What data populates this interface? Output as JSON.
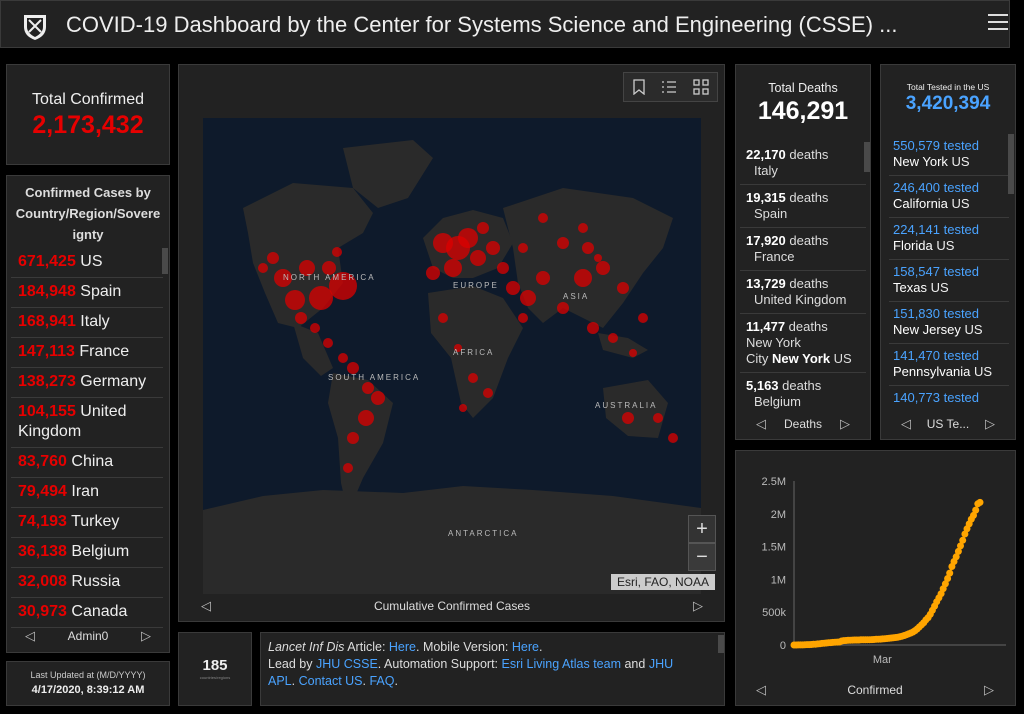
{
  "header": {
    "title": "COVID-19 Dashboard by the Center for Systems Science and Engineering (CSSE) ..."
  },
  "total_confirmed": {
    "label": "Total Confirmed",
    "value": "2,173,432"
  },
  "confirmed_list": {
    "title": "Confirmed Cases by Country/Region/Sovereignty",
    "title_lines": [
      "Confirmed Cases by",
      "Country/Region/Sovere",
      "ignty"
    ],
    "items": [
      {
        "value": "671,425",
        "name": "US"
      },
      {
        "value": "184,948",
        "name": "Spain"
      },
      {
        "value": "168,941",
        "name": "Italy"
      },
      {
        "value": "147,113",
        "name": "France"
      },
      {
        "value": "138,273",
        "name": "Germany"
      },
      {
        "value": "104,155",
        "name": "United Kingdom"
      },
      {
        "value": "83,760",
        "name": "China"
      },
      {
        "value": "79,494",
        "name": "Iran"
      },
      {
        "value": "74,193",
        "name": "Turkey"
      },
      {
        "value": "36,138",
        "name": "Belgium"
      },
      {
        "value": "32,008",
        "name": "Russia"
      },
      {
        "value": "30,973",
        "name": "Canada"
      }
    ],
    "nav_label": "Admin0"
  },
  "last_updated": {
    "label": "Last Updated at (M/D/YYYY)",
    "value": "4/17/2020, 8:39:12 AM"
  },
  "map": {
    "continent_labels": [
      "NORTH AMERICA",
      "SOUTH AMERICA",
      "EUROPE",
      "AFRICA",
      "ASIA",
      "AUSTRALIA",
      "ANTARCTICA"
    ],
    "attribution": "Esri, FAO, NOAA",
    "zoom_in": "+",
    "zoom_out": "−",
    "nav_label": "Cumulative Confirmed Cases"
  },
  "country_count": {
    "value": "185",
    "label": "countries/regions"
  },
  "info": {
    "l1_italic": "Lancet Inf Dis",
    "l1_a": " Article: ",
    "l1_link1": "Here",
    "l1_b": ". Mobile Version: ",
    "l1_link2": "Here",
    "l1_c": ".",
    "l2_a": "Lead by ",
    "l2_link1": "JHU CSSE",
    "l2_b": ". Automation Support: ",
    "l2_link2": "Esri Living Atlas team",
    "l2_c": " and ",
    "l2_link3": "JHU",
    "l3_link1": "APL",
    "l3_a": ". ",
    "l3_link2": "Contact US",
    "l3_b": ". ",
    "l3_link3": "FAQ",
    "l3_c": "."
  },
  "deaths": {
    "label": "Total Deaths",
    "value": "146,291",
    "items": [
      {
        "value": "22,170",
        "unit": "deaths",
        "line2": "Italy"
      },
      {
        "value": "19,315",
        "unit": "deaths",
        "line2": "Spain"
      },
      {
        "value": "17,920",
        "unit": "deaths",
        "line2": "France"
      },
      {
        "value": "13,729",
        "unit": "deaths",
        "line2": "United Kingdom"
      },
      {
        "value": "11,477",
        "unit": "deaths",
        "line2": "New York",
        "line3a": "City ",
        "line3b": "New York",
        "line3c": " US"
      },
      {
        "value": "5,163",
        "unit": "deaths",
        "line2": "Belgium"
      }
    ],
    "nav_label": "Deaths"
  },
  "tested": {
    "label": "Total Tested in the US",
    "value": "3,420,394",
    "items": [
      {
        "value": "550,579 tested",
        "state": "New York",
        "country": " US"
      },
      {
        "value": "246,400 tested",
        "state": "California",
        "country": " US"
      },
      {
        "value": "224,141 tested",
        "state": "Florida",
        "country": " US"
      },
      {
        "value": "158,547 tested",
        "state": "Texas",
        "country": " US"
      },
      {
        "value": "151,830 tested",
        "state": "New Jersey",
        "country": " US"
      },
      {
        "value": "141,470 tested",
        "state": "Pennsylvania",
        "country": " US"
      },
      {
        "value": "140,773 tested",
        "state": "",
        "country": ""
      }
    ],
    "nav_label": "US Te..."
  },
  "chart_nav_label": "Confirmed",
  "colors": {
    "red": "#e60000",
    "blue": "#4aa3ff",
    "orange": "#ffa500"
  },
  "chart_data": {
    "type": "line",
    "x_tick_labels": [
      "Mar"
    ],
    "y_tick_labels": [
      "0",
      "500k",
      "1M",
      "1.5M",
      "2M",
      "2.5M"
    ],
    "ylim": [
      0,
      2500000
    ],
    "series": [
      {
        "values": [
          555,
          654,
          941,
          1434,
          2118,
          2927,
          5578,
          6166,
          8234,
          9927,
          12038,
          16787,
          19881,
          23892,
          27635,
          30794,
          34391,
          37120,
          40150,
          42762,
          44802,
          45221,
          60368,
          66885,
          69030,
          71224,
          73258,
          75136,
          75639,
          76197,
          76819,
          78572,
          78958,
          79561,
          80406,
          81388,
          82746,
          84112,
          86604,
          88585,
          90443,
          93016,
          95314,
          98425,
          102050,
          106099,
          109991,
          114381,
          118948,
          126214,
          134576,
          145483,
          156653,
          169593,
          182490,
          198234,
          218822,
          246088,
          275991,
          308175,
          341365,
          383124,
          418045,
          467594,
          529591,
          593291,
          660706,
          720117,
          782365,
          857487,
          932605,
          1013466,
          1095917,
          1197405,
          1272115,
          1345048,
          1426096,
          1511104,
          1595350,
          1691719,
          1771514,
          1846680,
          1917320,
          1976192,
          2056055,
          2152437,
          2173432
        ]
      }
    ]
  }
}
